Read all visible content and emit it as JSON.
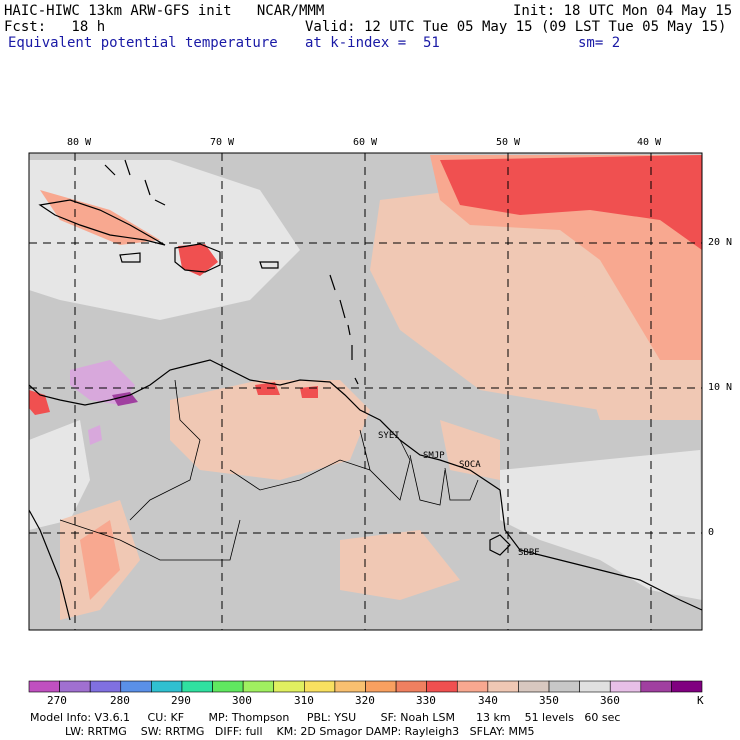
{
  "header": {
    "line1_left": "HAIC-HIWC 13km ARW-GFS init   NCAR/MMM",
    "line1_right": "Init: 18 UTC Mon 04 May 15",
    "line2_left": "Fcst:   18 h",
    "line2_right": "Valid: 12 UTC Tue 05 May 15 (09 LST Tue 05 May 15)",
    "line3_left": "Equivalent potential temperature",
    "line3_mid": "at k-index =  51",
    "line3_right": "sm= 2"
  },
  "map": {
    "lon_labels": [
      "80 W",
      "70 W",
      "60 W",
      "50 W",
      "40 W"
    ],
    "lat_labels": [
      "20 N",
      "10 N",
      "0"
    ],
    "stations": [
      "SYEI",
      "SMJP",
      "SOCA",
      "SBBE"
    ],
    "colors": {
      "base": "#c8c8c8",
      "light_gray": "#e6e6e6",
      "tan": "#f0c8b4",
      "salmon": "#f8a890",
      "red": "#f05050",
      "light_purple": "#d8a8dc",
      "purple": "#a040a0"
    }
  },
  "colorbar": {
    "title_unit": "K",
    "colors": [
      "#c050c0",
      "#a070d0",
      "#8070e0",
      "#5a90e8",
      "#30c0d0",
      "#30e0a0",
      "#60e860",
      "#a0f060",
      "#e0f060",
      "#f8e060",
      "#f8c070",
      "#f8a060",
      "#f08060",
      "#f05050",
      "#f8a890",
      "#f0c8b4",
      "#d8c8c0",
      "#c8c8c8",
      "#e0e0e0",
      "#e8c0e8",
      "#a040a0",
      "#800080"
    ],
    "ticks": [
      "270",
      "280",
      "290",
      "300",
      "310",
      "320",
      "330",
      "340",
      "350",
      "360"
    ]
  },
  "model_info": {
    "line1": "Model Info: V3.6.1     CU: KF       MP: Thompson     PBL: YSU       SF: Noah LSM      13 km    51 levels   60 sec",
    "line2": "          LW: RRTMG    SW: RRTMG   DIFF: full    KM: 2D Smagor DAMP: Rayleigh3   SFLAY: MM5"
  }
}
